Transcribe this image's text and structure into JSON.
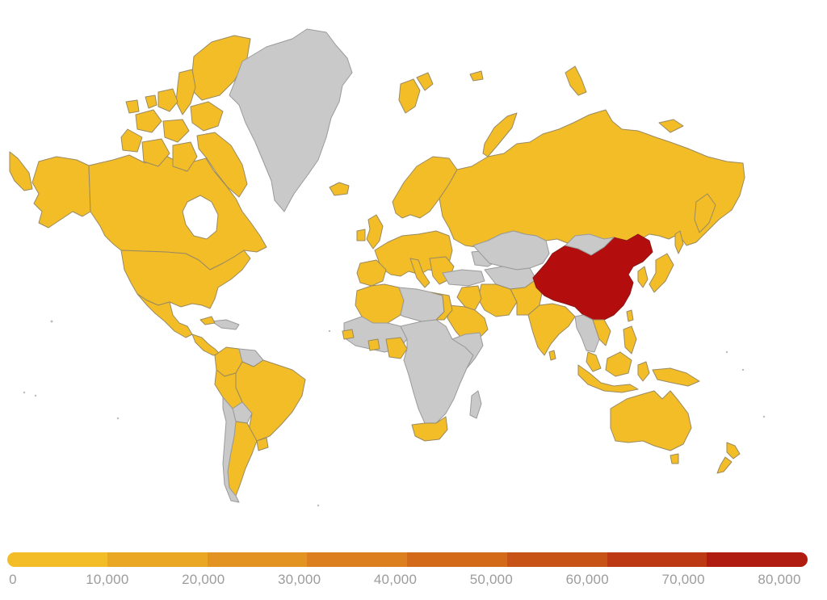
{
  "legend": {
    "ticks": [
      "0",
      "10,000",
      "20,000",
      "30,000",
      "40,000",
      "50,000",
      "60,000",
      "70,000",
      "80,000"
    ],
    "segments": [
      "#f2bd27",
      "#eaa724",
      "#e39321",
      "#dc7f1e",
      "#d36a1a",
      "#c85317",
      "#bd3914",
      "#b01d10"
    ]
  },
  "colors": {
    "low": "#f2bd27",
    "no_data": "#c9c9c9",
    "high": "#b30d0d"
  }
}
